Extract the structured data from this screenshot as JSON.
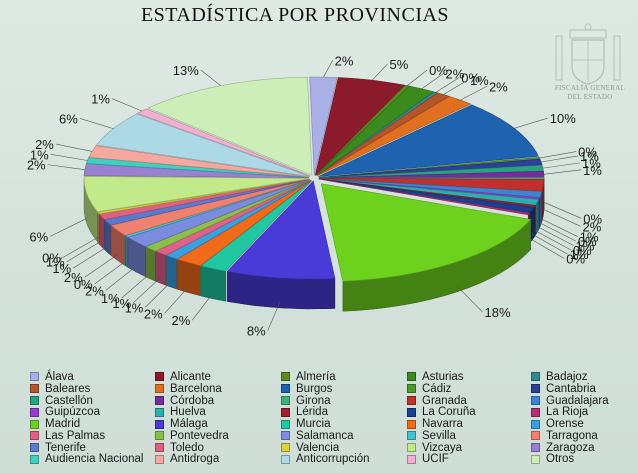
{
  "chart_data": {
    "type": "pie",
    "title": "ESTADÍSTICA POR PROVINCIAS",
    "watermark_text": "FISCALÍA GENERAL DEL ESTADO",
    "slices": [
      {
        "name": "Álava",
        "label": "2%",
        "value": 2,
        "color": "#a9b0e6"
      },
      {
        "name": "Alicante",
        "label": "5%",
        "value": 5,
        "color": "#8b1a2c"
      },
      {
        "name": "Almería",
        "label": "0%",
        "value": 0.3,
        "color": "#5f8a1f"
      },
      {
        "name": "Asturias",
        "label": "2%",
        "value": 2,
        "color": "#3a8a1e"
      },
      {
        "name": "Badajoz",
        "label": "0%",
        "value": 0.3,
        "color": "#2f8c8c"
      },
      {
        "name": "Baleares",
        "label": "1%",
        "value": 1,
        "color": "#b3542a"
      },
      {
        "name": "Barcelona",
        "label": "2%",
        "value": 2,
        "color": "#e07020"
      },
      {
        "name": "Burgos",
        "label": "10%",
        "value": 10,
        "color": "#1e62b0"
      },
      {
        "name": "Cádiz",
        "label": "0%",
        "value": 0.3,
        "color": "#4e9a2a"
      },
      {
        "name": "Cantabria",
        "label": "1%",
        "value": 1,
        "color": "#2c3f99"
      },
      {
        "name": "Castellón",
        "label": "1%",
        "value": 1,
        "color": "#29a37f"
      },
      {
        "name": "Córdoba",
        "label": "1%",
        "value": 1,
        "color": "#7a2aa0"
      },
      {
        "name": "Girona",
        "label": "0%",
        "value": 0.3,
        "color": "#3fb07a"
      },
      {
        "name": "Granada",
        "label": "2%",
        "value": 2,
        "color": "#c2302e"
      },
      {
        "name": "Guadalajara",
        "label": "1%",
        "value": 1,
        "color": "#3b86d0"
      },
      {
        "name": "Guipúzcoa",
        "label": "0%",
        "value": 0.3,
        "color": "#9a3ad0"
      },
      {
        "name": "Huelva",
        "label": "1%",
        "value": 1,
        "color": "#2bb0b0"
      },
      {
        "name": "Lérida",
        "label": "0%",
        "value": 0.3,
        "color": "#a31e2a"
      },
      {
        "name": "La Coruña",
        "label": "1%",
        "value": 1,
        "color": "#1a3f8f"
      },
      {
        "name": "La Rioja",
        "label": "0%",
        "value": 0.3,
        "color": "#b03070"
      },
      {
        "name": "Madrid",
        "label": "18%",
        "value": 18,
        "color": "#6dd11e"
      },
      {
        "name": "Málaga",
        "label": "8%",
        "value": 8,
        "color": "#4a3ad8"
      },
      {
        "name": "Murcia",
        "label": "2%",
        "value": 2,
        "color": "#20c7a0"
      },
      {
        "name": "Navarra",
        "label": "2%",
        "value": 2,
        "color": "#f06a1a"
      },
      {
        "name": "Orense",
        "label": "1%",
        "value": 1,
        "color": "#3aa0e0"
      },
      {
        "name": "Las Palmas",
        "label": "1%",
        "value": 1,
        "color": "#e0608a"
      },
      {
        "name": "Pontevedra",
        "label": "1%",
        "value": 1,
        "color": "#8ac04a"
      },
      {
        "name": "Salamanca",
        "label": "2%",
        "value": 2,
        "color": "#7b8be0"
      },
      {
        "name": "Sevilla",
        "label": "0%",
        "value": 0.3,
        "color": "#48c0d0"
      },
      {
        "name": "Tarragona",
        "label": "2%",
        "value": 2,
        "color": "#f08070"
      },
      {
        "name": "Tenerife",
        "label": "1%",
        "value": 1,
        "color": "#5a7ad0"
      },
      {
        "name": "Toledo",
        "label": "1%",
        "value": 1,
        "color": "#e06080"
      },
      {
        "name": "Valencia",
        "label": "0%",
        "value": 0.3,
        "color": "#d8d040"
      },
      {
        "name": "Vizcaya",
        "label": "6%",
        "value": 6,
        "color": "#c2ea8a"
      },
      {
        "name": "Zaragoza",
        "label": "2%",
        "value": 2,
        "color": "#9a80d0"
      },
      {
        "name": "Audiencia Nacional",
        "label": "1%",
        "value": 1,
        "color": "#3fd0c0"
      },
      {
        "name": "Antidroga",
        "label": "2%",
        "value": 2,
        "color": "#f4a8a0"
      },
      {
        "name": "Anticorrupción",
        "label": "6%",
        "value": 6,
        "color": "#add8e6"
      },
      {
        "name": "UCIF",
        "label": "1%",
        "value": 1,
        "color": "#f0b0d0"
      },
      {
        "name": "Otros",
        "label": "13%",
        "value": 13,
        "color": "#cdeeb8"
      }
    ]
  }
}
